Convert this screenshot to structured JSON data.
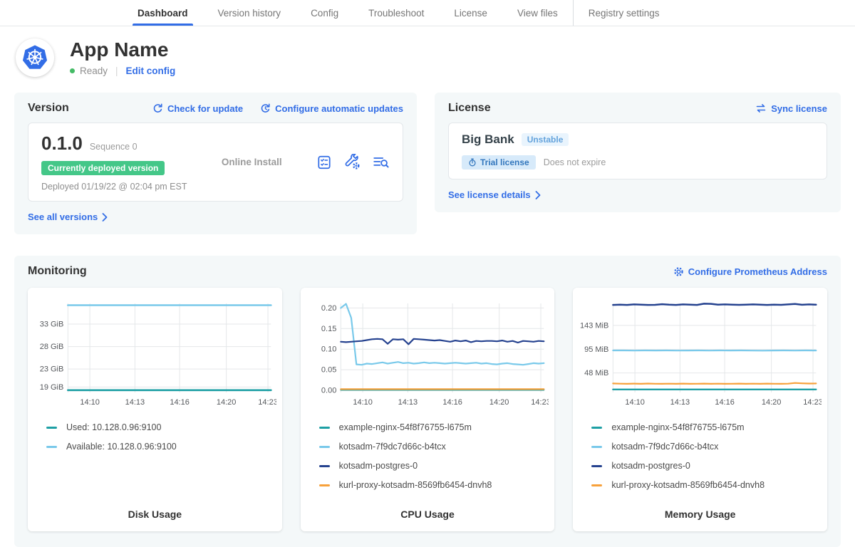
{
  "colors": {
    "accent_blue": "#326de6",
    "green_badge": "#44c788",
    "ready_dot": "#44bb66",
    "panel_bg": "#f4f8f9",
    "teal": "#1d9fa4",
    "light_blue": "#79c9ea",
    "navy": "#25428f",
    "orange": "#f7a13b"
  },
  "nav": {
    "tabs": [
      {
        "label": "Dashboard",
        "active": true
      },
      {
        "label": "Version history",
        "active": false
      },
      {
        "label": "Config",
        "active": false
      },
      {
        "label": "Troubleshoot",
        "active": false
      },
      {
        "label": "License",
        "active": false
      },
      {
        "label": "View files",
        "active": false
      },
      {
        "label": "Registry settings",
        "active": false,
        "divider_before": true
      }
    ]
  },
  "header": {
    "app_name": "App Name",
    "status": "Ready",
    "edit_config": "Edit config",
    "logo_icon": "kubernetes-logo"
  },
  "version_card": {
    "title": "Version",
    "check_update_link": "Check for update",
    "auto_updates_link": "Configure automatic updates",
    "version_number": "0.1.0",
    "sequence": "Sequence 0",
    "deployed_badge": "Currently deployed version",
    "deployed_date": "Deployed 01/19/22 @ 02:04 pm EST",
    "install_type": "Online Install",
    "action_icons": [
      "preflight-checks-icon",
      "config-wrench-icon",
      "view-logs-icon"
    ],
    "see_all_link": "See all versions"
  },
  "license_card": {
    "title": "License",
    "sync_link": "Sync license",
    "customer_name": "Big Bank",
    "channel_badge": "Unstable",
    "trial_badge": "Trial license",
    "expire_text": "Does not expire",
    "details_link": "See license details"
  },
  "monitoring": {
    "title": "Monitoring",
    "configure_link": "Configure Prometheus Address",
    "chart_data": [
      {
        "id": "disk-usage",
        "type": "line",
        "title": "Disk Usage",
        "ylim": [
          17.8,
          37.6
        ],
        "yticks": [
          {
            "label": "33 GiB",
            "value": 33
          },
          {
            "label": "28 GiB",
            "value": 28
          },
          {
            "label": "23 GiB",
            "value": 23
          },
          {
            "label": "19 GiB",
            "value": 19
          }
        ],
        "xticks": [
          "14:10",
          "14:13",
          "14:16",
          "14:20",
          "14:23"
        ],
        "xtick_pos": [
          0.108,
          0.33,
          0.55,
          0.78,
          0.985
        ],
        "series": [
          {
            "name": "Used: 10.128.0.96:9100",
            "color": "#1d9fa4",
            "width": 2.6,
            "values": [
              18.3,
              18.3
            ]
          },
          {
            "name": "Available: 10.128.0.96:9100",
            "color": "#79c9ea",
            "width": 2.6,
            "values": [
              37.2,
              37.2
            ]
          }
        ]
      },
      {
        "id": "cpu-usage",
        "type": "line",
        "title": "CPU Usage",
        "ylim": [
          -0.005,
          0.211
        ],
        "yticks": [
          {
            "label": "0.20",
            "value": 0.2
          },
          {
            "label": "0.15",
            "value": 0.15
          },
          {
            "label": "0.10",
            "value": 0.1
          },
          {
            "label": "0.05",
            "value": 0.05
          },
          {
            "label": "0.00",
            "value": 0.0
          }
        ],
        "xticks": [
          "14:10",
          "14:13",
          "14:16",
          "14:20",
          "14:23"
        ],
        "xtick_pos": [
          0.108,
          0.33,
          0.55,
          0.78,
          0.985
        ],
        "series": [
          {
            "name": "example-nginx-54f8f76755-l675m",
            "color": "#1d9fa4",
            "width": 2,
            "values": [
              0.001,
              0.001
            ]
          },
          {
            "name": "kotsadm-7f9dc7d66c-b4tcx",
            "color": "#79c9ea",
            "width": 2.2,
            "values": [
              0.2,
              0.21,
              0.176,
              0.063,
              0.062,
              0.065,
              0.064,
              0.066,
              0.068,
              0.065,
              0.067,
              0.069,
              0.066,
              0.067,
              0.065,
              0.066,
              0.068,
              0.066,
              0.067,
              0.066,
              0.065,
              0.066,
              0.067,
              0.066,
              0.065,
              0.066,
              0.067,
              0.065,
              0.066,
              0.064,
              0.063,
              0.065,
              0.066,
              0.064,
              0.063,
              0.062,
              0.064,
              0.066,
              0.065,
              0.066
            ]
          },
          {
            "name": "kotsadm-postgres-0",
            "color": "#25428f",
            "width": 2.2,
            "values": [
              0.118,
              0.117,
              0.118,
              0.119,
              0.12,
              0.122,
              0.124,
              0.125,
              0.124,
              0.113,
              0.124,
              0.123,
              0.124,
              0.112,
              0.125,
              0.124,
              0.123,
              0.122,
              0.121,
              0.122,
              0.12,
              0.118,
              0.121,
              0.119,
              0.121,
              0.117,
              0.12,
              0.119,
              0.12,
              0.12,
              0.119,
              0.121,
              0.118,
              0.12,
              0.116,
              0.12,
              0.119,
              0.118,
              0.12,
              0.119
            ]
          },
          {
            "name": "kurl-proxy-kotsadm-8569fb6454-dnvh8",
            "color": "#f7a13b",
            "width": 2.2,
            "values": [
              0.003,
              0.003
            ]
          }
        ]
      },
      {
        "id": "memory-usage",
        "type": "line",
        "title": "Memory Usage",
        "ylim": [
          9,
          187
        ],
        "yticks": [
          {
            "label": "143 MiB",
            "value": 143
          },
          {
            "label": "95 MiB",
            "value": 95
          },
          {
            "label": "48 MiB",
            "value": 48
          }
        ],
        "xticks": [
          "14:10",
          "14:13",
          "14:16",
          "14:20",
          "14:23"
        ],
        "xtick_pos": [
          0.108,
          0.33,
          0.55,
          0.78,
          0.985
        ],
        "series": [
          {
            "name": "example-nginx-54f8f76755-l675m",
            "color": "#1d9fa4",
            "width": 2.4,
            "values": [
              15,
              15
            ]
          },
          {
            "name": "kotsadm-7f9dc7d66c-b4tcx",
            "color": "#79c9ea",
            "width": 2.2,
            "values": [
              93,
              93,
              92.8,
              93,
              92.9,
              93,
              92.7,
              92.9,
              93,
              92.8,
              93,
              92.9,
              93,
              92.8,
              92.6,
              92.9,
              93,
              92.8,
              93,
              92.9
            ]
          },
          {
            "name": "kotsadm-postgres-0",
            "color": "#25428f",
            "width": 2.5,
            "values": [
              184,
              184.5,
              184,
              185,
              184.5,
              184,
              184.2,
              185.5,
              184.5,
              184,
              185,
              184.5,
              184,
              186.5,
              186.2,
              184.5,
              185,
              184.5,
              184.2,
              184.5,
              185,
              184.5,
              184,
              184.5,
              184.2,
              185,
              186,
              184.3,
              185,
              184.5
            ]
          },
          {
            "name": "kurl-proxy-kotsadm-8569fb6454-dnvh8",
            "color": "#f7a13b",
            "width": 2.2,
            "values": [
              27,
              26.5,
              26.2,
              26.6,
              26.3,
              26.8,
              26.4,
              26.2,
              26.5,
              26.3,
              26.6,
              26.2,
              26.4,
              26.6,
              26.3,
              26.5,
              26.2,
              26.4,
              26.7,
              26.3,
              26.5,
              26.3,
              26.6,
              26.4,
              26.2,
              26.5,
              28,
              27.2,
              26.8,
              26.9
            ]
          }
        ]
      }
    ]
  }
}
